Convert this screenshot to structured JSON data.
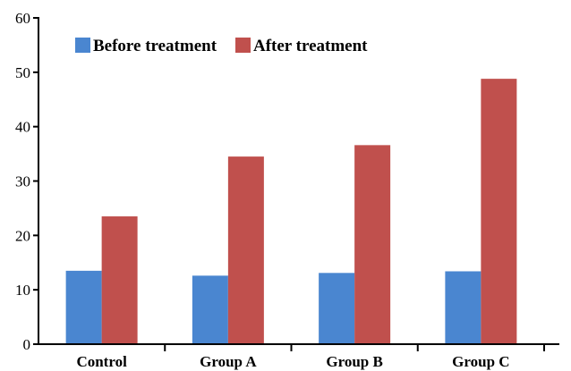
{
  "chart_data": {
    "type": "bar",
    "categories": [
      "Control",
      "Group A",
      "Group B",
      "Group C"
    ],
    "series": [
      {
        "name": "Before treatment",
        "color": "#4a86d0",
        "values": [
          13.5,
          12.6,
          13.1,
          13.4
        ]
      },
      {
        "name": "After treatment",
        "color": "#c0504d",
        "values": [
          23.5,
          34.5,
          36.6,
          48.8
        ]
      }
    ],
    "yticks": [
      0,
      10,
      20,
      30,
      40,
      50,
      60
    ],
    "ylim": [
      0,
      60
    ],
    "title": "",
    "xlabel": "",
    "ylabel": "",
    "grid": false,
    "legend_position": "top-left"
  }
}
